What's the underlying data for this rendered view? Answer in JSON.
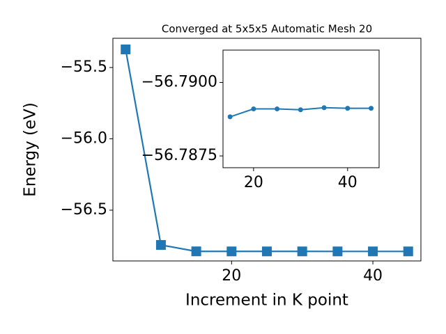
{
  "chart_data": [
    {
      "type": "line",
      "title": "Converged at 5x5x5 Automatic Mesh 20",
      "x_label": "Increment in K point",
      "y_label": "Energy (eV)",
      "x": [
        5,
        10,
        15,
        20,
        25,
        30,
        35,
        40,
        45
      ],
      "series": [
        {
          "color": "#1f77b4",
          "marker": "square",
          "values": [
            -55.373,
            -56.744,
            -56.78883,
            -56.7891,
            -56.7891,
            -56.78907,
            -56.78914,
            -56.78912,
            -56.78912
          ]
        }
      ],
      "xlim": [
        3.2,
        46.8
      ],
      "xticks": [
        20,
        40
      ],
      "ylim": [
        -56.856,
        -55.295
      ],
      "yticks": [
        {
          "value": -55.5,
          "label": "−55.5"
        },
        {
          "value": -56.0,
          "label": "−56.0"
        },
        {
          "value": -56.5,
          "label": "−56.5"
        }
      ]
    },
    {
      "type": "line",
      "x": [
        15,
        20,
        25,
        30,
        35,
        40,
        45
      ],
      "series": [
        {
          "color": "#1f77b4",
          "marker": "circle",
          "values": [
            -56.78883,
            -56.7891,
            -56.7891,
            -56.78907,
            -56.78914,
            -56.78912,
            -56.78912
          ]
        }
      ],
      "xlim": [
        13.5,
        46.7
      ],
      "xticks": [
        20,
        40
      ],
      "ylim": [
        -56.7871,
        -56.7911
      ],
      "yticks": [
        {
          "value": -56.79,
          "label": "−56.7900"
        },
        {
          "value": -56.7875,
          "label": "−56.7875"
        }
      ]
    }
  ]
}
